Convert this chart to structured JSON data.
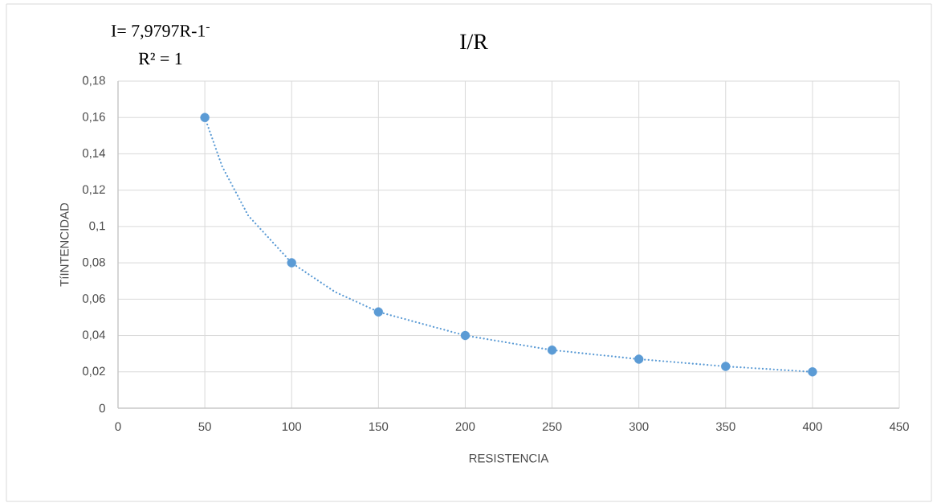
{
  "chart_data": {
    "type": "scatter",
    "title": "I/R",
    "xlabel": "RESISTENCIA",
    "ylabel": "TíINTENCIDAD",
    "annotations": [
      "I= 7,9797R-1$^{-}$",
      "R² = 1"
    ],
    "series": [
      {
        "color": "#5b9bd5",
        "marker": "circle",
        "x": [
          50,
          100,
          150,
          200,
          250,
          300,
          350,
          400
        ],
        "values": [
          0.16,
          0.08,
          0.053,
          0.04,
          0.032,
          0.027,
          0.023,
          0.02
        ]
      },
      {
        "type": "line",
        "color": "#5b9bd5",
        "marker": "none",
        "line_style": "dotted",
        "x": [
          50,
          60,
          75,
          100,
          125,
          150,
          200,
          250,
          300,
          350,
          400
        ],
        "values": [
          0.16,
          0.133,
          0.106,
          0.08,
          0.064,
          0.053,
          0.04,
          0.032,
          0.027,
          0.023,
          0.02
        ]
      }
    ],
    "xlim": [
      0,
      450
    ],
    "xticks": [
      0,
      50,
      100,
      150,
      200,
      250,
      300,
      350,
      400,
      450
    ],
    "ylim": [
      0,
      0.18
    ],
    "yticks": [
      0,
      {
        "value": 0.02,
        "label": "0,02"
      },
      {
        "value": 0.04,
        "label": "0,04"
      },
      {
        "value": 0.06,
        "label": "0,06"
      },
      {
        "value": 0.08,
        "label": "0,08"
      },
      {
        "value": 0.1,
        "label": "0,1"
      },
      {
        "value": 0.12,
        "label": "0,12"
      },
      {
        "value": 0.14,
        "label": "0,14"
      },
      {
        "value": 0.16,
        "label": "0,16"
      },
      {
        "value": 0.18,
        "label": "0,18"
      }
    ],
    "grid": true
  }
}
